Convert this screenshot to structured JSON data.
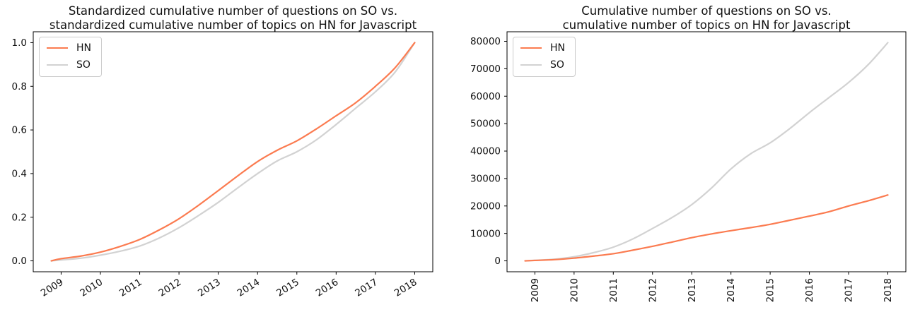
{
  "figure": {
    "background": "#ffffff",
    "text_color": "#111111",
    "spine_color": "#000000"
  },
  "chart_data": {
    "charts": [
      {
        "type": "line",
        "title": "Standardized cumulative number of questions on SO vs.\nstandardized cumulative number of topics on HN for Javascript",
        "xlabel": "",
        "ylabel": "",
        "xlim": [
          2008.29,
          2018.46
        ],
        "ylim": [
          -0.05,
          1.05
        ],
        "grid": false,
        "legend_position": "upper-left",
        "x_tick_values": [
          2009,
          2010,
          2011,
          2012,
          2013,
          2014,
          2015,
          2016,
          2017,
          2018
        ],
        "x_tick_labels": [
          "2009",
          "2010",
          "2011",
          "2012",
          "2013",
          "2014",
          "2015",
          "2016",
          "2017",
          "2018"
        ],
        "x_tick_rotation": 32,
        "y_tick_values": [
          0.0,
          0.2,
          0.4,
          0.6,
          0.8,
          1.0
        ],
        "y_tick_labels": [
          "0.0",
          "0.2",
          "0.4",
          "0.6",
          "0.8",
          "1.0"
        ],
        "x": [
          2008.75,
          2009,
          2009.5,
          2010,
          2010.5,
          2011,
          2011.5,
          2012,
          2012.5,
          2013,
          2013.5,
          2014,
          2014.5,
          2015,
          2015.5,
          2016,
          2016.5,
          2017,
          2017.5,
          2018
        ],
        "series": [
          {
            "name": "HN",
            "color": "#fb7b50",
            "values": [
              0,
              0.01,
              0.022,
              0.04,
              0.066,
              0.098,
              0.142,
              0.193,
              0.255,
              0.322,
              0.39,
              0.455,
              0.507,
              0.55,
              0.605,
              0.665,
              0.725,
              0.8,
              0.885,
              1.0
            ]
          },
          {
            "name": "SO",
            "color": "#d2d2d2",
            "values": [
              0,
              0.004,
              0.012,
              0.026,
              0.044,
              0.068,
              0.105,
              0.152,
              0.208,
              0.268,
              0.335,
              0.4,
              0.458,
              0.5,
              0.555,
              0.625,
              0.7,
              0.775,
              0.865,
              1.0
            ]
          }
        ]
      },
      {
        "type": "line",
        "title": "Cumulative number of questions on SO vs.\ncumulative number of topics on HN for Javascript",
        "xlabel": "",
        "ylabel": "",
        "xlim": [
          2008.29,
          2018.46
        ],
        "ylim": [
          -3975,
          83475
        ],
        "grid": false,
        "legend_position": "upper-left",
        "x_tick_values": [
          2009,
          2010,
          2011,
          2012,
          2013,
          2014,
          2015,
          2016,
          2017,
          2018
        ],
        "x_tick_labels": [
          "2009",
          "2010",
          "2011",
          "2012",
          "2013",
          "2014",
          "2015",
          "2016",
          "2017",
          "2018"
        ],
        "x_tick_rotation": 90,
        "y_tick_values": [
          0,
          10000,
          20000,
          30000,
          40000,
          50000,
          60000,
          70000,
          80000
        ],
        "y_tick_labels": [
          "0",
          "10000",
          "20000",
          "30000",
          "40000",
          "50000",
          "60000",
          "70000",
          "80000"
        ],
        "x": [
          2008.75,
          2009,
          2009.5,
          2010,
          2010.5,
          2011,
          2011.5,
          2012,
          2012.5,
          2013,
          2013.5,
          2014,
          2014.5,
          2015,
          2015.5,
          2016,
          2016.5,
          2017,
          2017.5,
          2018
        ],
        "series": [
          {
            "name": "HN",
            "color": "#fb7b50",
            "values": [
              0,
              150,
              450,
              1000,
              1750,
              2600,
              3900,
              5300,
              6850,
              8450,
              9800,
              11000,
              12100,
              13300,
              14800,
              16300,
              17900,
              20000,
              21900,
              24000
            ]
          },
          {
            "name": "SO",
            "color": "#d2d2d2",
            "values": [
              0,
              200,
              600,
              1500,
              3000,
              5000,
              8000,
              11800,
              15800,
              20500,
              26500,
              33500,
              39000,
              43000,
              48200,
              54000,
              59500,
              65000,
              71500,
              79500
            ]
          }
        ]
      }
    ]
  }
}
